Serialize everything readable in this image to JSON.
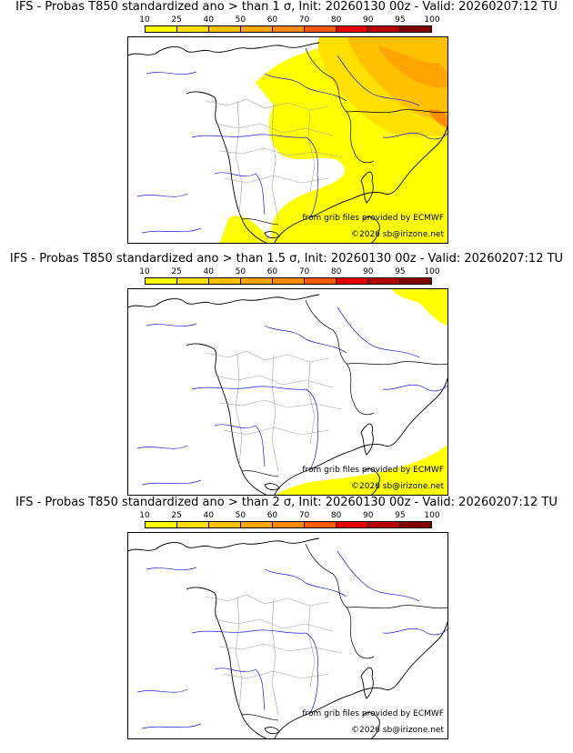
{
  "colorbar": {
    "ticks": [
      "10",
      "25",
      "40",
      "50",
      "60",
      "70",
      "80",
      "90",
      "95",
      "100"
    ],
    "colors": [
      "#ffff00",
      "#ffe000",
      "#ffc000",
      "#ffa500",
      "#ff8c00",
      "#ff5a00",
      "#e60000",
      "#b40000",
      "#820000"
    ]
  },
  "colors": {
    "coast": "#000000",
    "rivers": "#1c1cd2",
    "borders": "#a0a0a0"
  },
  "credits": {
    "source": "from grib files provided by ECMWF",
    "copyright": "©2026 sb@irizone.net"
  },
  "panels": [
    {
      "title": "IFS - Probas T850  standardized ano > than 1 σ, Init: 20260130 00z - Valid: 20260207:12 TU"
    },
    {
      "title": "IFS - Probas T850  standardized ano > than 1.5 σ, Init: 20260130 00z - Valid: 20260207:12 TU"
    },
    {
      "title": "IFS - Probas T850  standardized ano > than 2 σ, Init: 20260130 00z - Valid: 20260207:12 TU"
    }
  ]
}
